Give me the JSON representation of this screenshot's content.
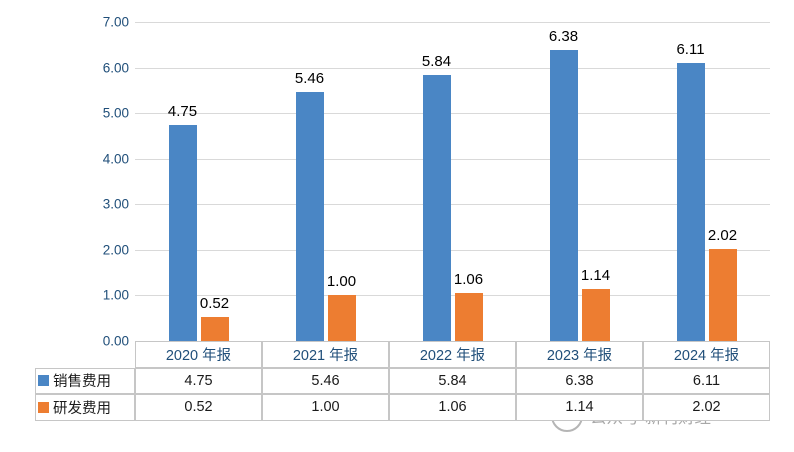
{
  "chart_data": {
    "type": "bar",
    "categories": [
      "2020 年报",
      "2021 年报",
      "2022 年报",
      "2023 年报",
      "2024 年报"
    ],
    "series": [
      {
        "name": "销售费用",
        "color": "#4a86c5",
        "values": [
          4.75,
          5.46,
          5.84,
          6.38,
          6.11
        ]
      },
      {
        "name": "研发费用",
        "color": "#ed7d31",
        "values": [
          0.52,
          1.0,
          1.06,
          1.14,
          2.02
        ]
      }
    ],
    "title": "",
    "xlabel": "",
    "ylabel": "",
    "ylim": [
      0,
      7
    ],
    "ytick_step": 1,
    "ytick_labels": [
      "0.00",
      "1.00",
      "2.00",
      "3.00",
      "4.00",
      "5.00",
      "6.00",
      "7.00"
    ],
    "grid": true,
    "data_labels": true,
    "legend_position": "table-left",
    "table": {
      "rows": [
        {
          "label": "销售费用",
          "values": [
            "4.75",
            "5.46",
            "5.84",
            "6.38",
            "6.11"
          ]
        },
        {
          "label": "研发费用",
          "values": [
            "0.52",
            "1.00",
            "1.06",
            "1.14",
            "2.02"
          ]
        }
      ]
    }
  },
  "colors": {
    "axis_text": "#1f4e79",
    "grid": "#d9d9d9",
    "table_border": "#c6c6c6"
  },
  "watermark": {
    "text": "公众号·新刊财经"
  }
}
